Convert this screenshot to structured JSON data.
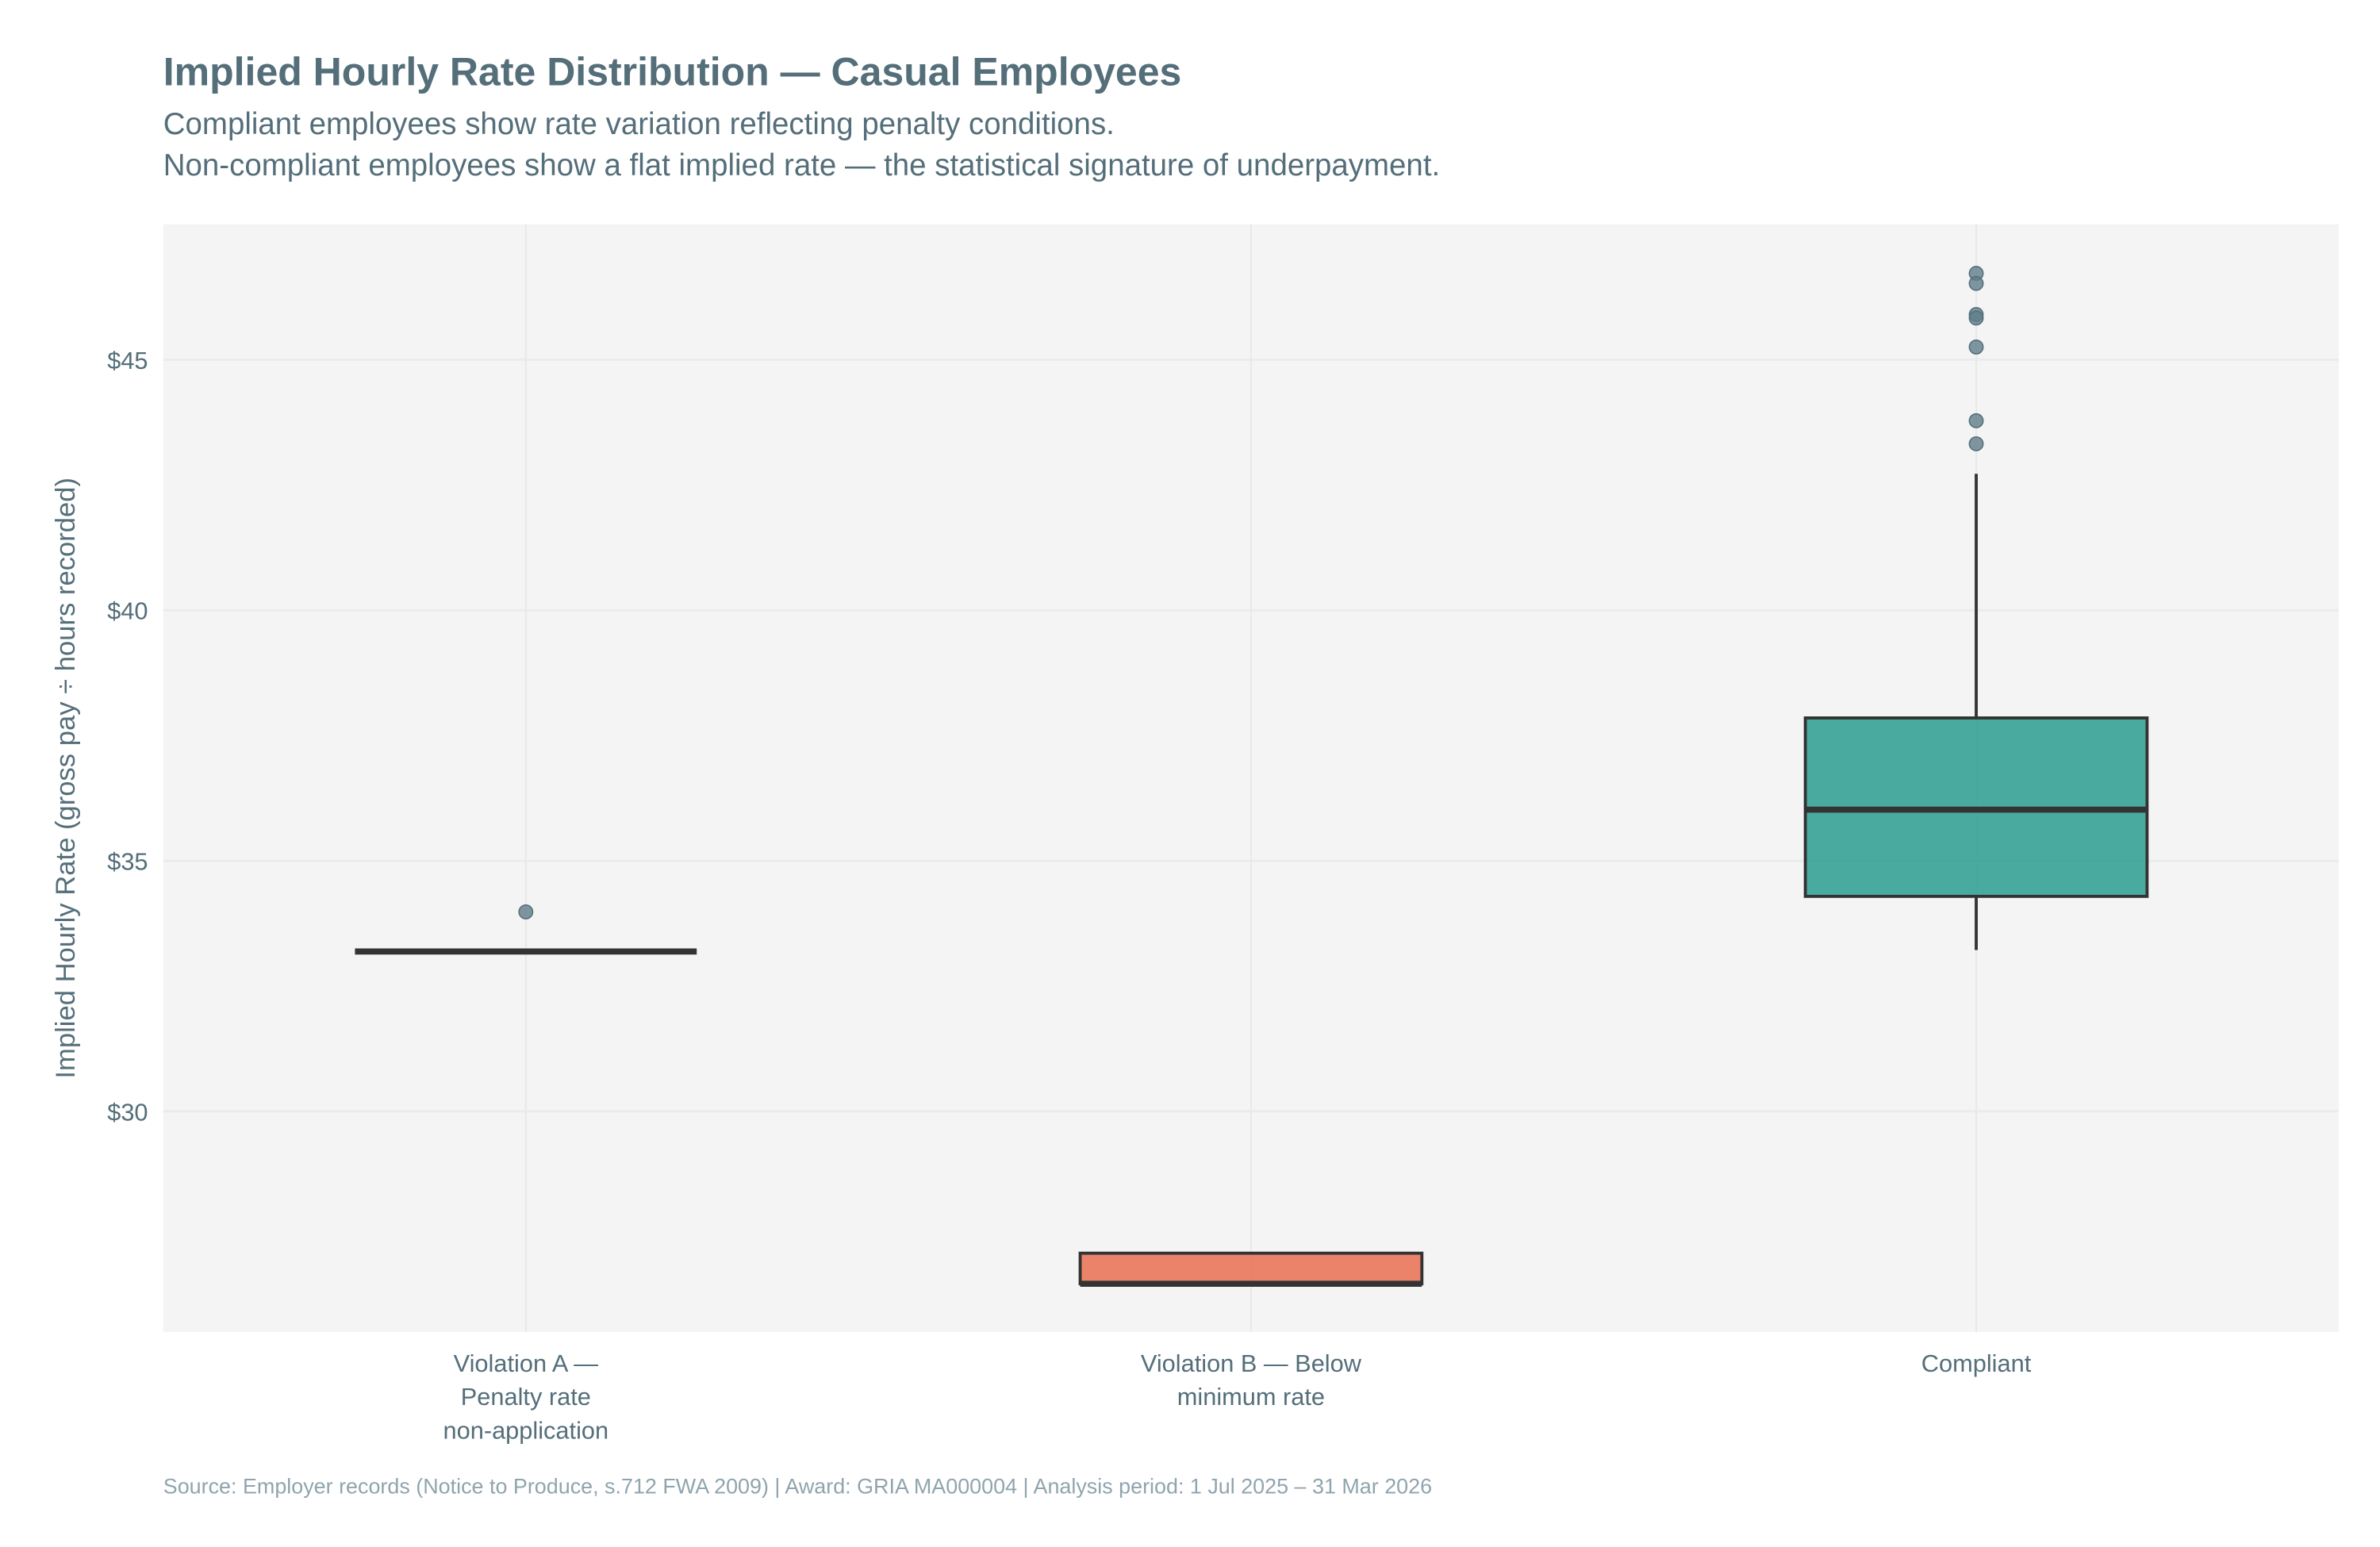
{
  "title": "Implied Hourly Rate Distribution — Casual Employees",
  "subtitle_lines": [
    "Compliant employees show rate variation reflecting penalty conditions.",
    "Non-compliant employees show a flat implied rate — the statistical signature of underpayment."
  ],
  "source": "Source: Employer records (Notice to Produce, s.712 FWA 2009) | Award: GRIA MA000004 | Analysis period: 1 Jul 2025 – 31 Mar 2026",
  "chart_data": {
    "type": "box",
    "title": "Implied Hourly Rate Distribution — Casual Employees",
    "xlabel": "",
    "ylabel": "Implied Hourly Rate (gross pay ÷ hours recorded)",
    "ylim": [
      25.6,
      47.7
    ],
    "yticks": [
      30,
      35,
      40,
      45
    ],
    "ytick_labels": [
      "$30",
      "$35",
      "$40",
      "$45"
    ],
    "grid": true,
    "legend": "none",
    "categories": [
      {
        "label_lines": [
          "Violation A —",
          "Penalty rate",
          "non-application"
        ]
      },
      {
        "label_lines": [
          "Violation B — Below",
          "minimum rate"
        ]
      },
      {
        "label_lines": [
          "Compliant"
        ]
      }
    ],
    "boxes": [
      {
        "min": 33.19,
        "q1": 33.19,
        "median": 33.19,
        "q3": 33.19,
        "max": 33.19,
        "outliers": [
          33.98
        ],
        "color": "#e76f51"
      },
      {
        "min": 26.56,
        "q1": 26.56,
        "median": 26.56,
        "q3": 27.17,
        "max": 27.17,
        "outliers": [],
        "color": "#e76f51"
      },
      {
        "min": 33.22,
        "q1": 34.29,
        "median": 36.02,
        "q3": 37.85,
        "max": 42.72,
        "outliers": [
          46.72,
          46.52,
          45.9,
          45.83,
          45.25,
          43.78,
          43.32
        ],
        "color": "#2a9d8f"
      }
    ],
    "outlier_color": "#607d8b",
    "box_line_color": "#333333",
    "plot_background": "#f4f4f4"
  }
}
